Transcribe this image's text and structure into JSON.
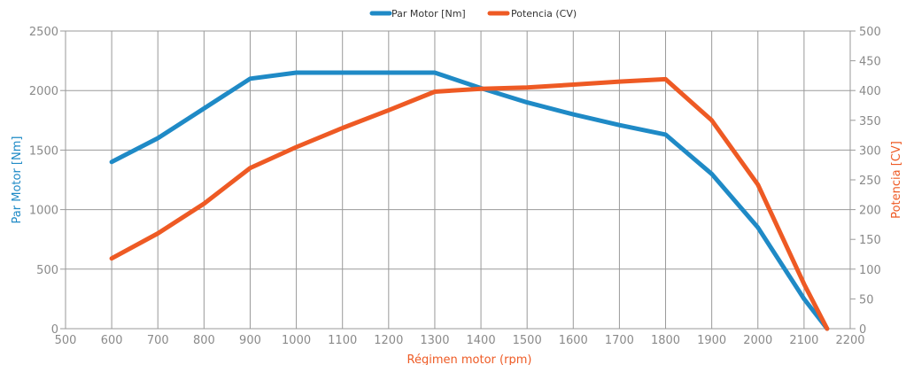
{
  "chart_data": {
    "type": "line",
    "title": "",
    "xlabel": "Régimen motor (rpm)",
    "ylabel_left": "Par Motor  [Nm]",
    "ylabel_right": "Potencia [CV]",
    "xlim": [
      500,
      2200
    ],
    "ylim_left": [
      0,
      2500
    ],
    "ylim_right": [
      0,
      500
    ],
    "x_ticks": [
      500,
      600,
      700,
      800,
      900,
      1000,
      1100,
      1200,
      1300,
      1400,
      1500,
      1600,
      1700,
      1800,
      1900,
      2000,
      2100,
      2200
    ],
    "y_left_ticks": [
      0,
      500,
      1000,
      1500,
      2000,
      2500
    ],
    "y_right_ticks": [
      0,
      50,
      100,
      150,
      200,
      250,
      300,
      350,
      400,
      450,
      500
    ],
    "grid": true,
    "legend_position": "top-center",
    "series": [
      {
        "name": "Par Motor [Nm]",
        "axis": "left",
        "color": "#1f8ac6",
        "x": [
          600,
          700,
          800,
          900,
          1000,
          1100,
          1200,
          1300,
          1400,
          1500,
          1600,
          1700,
          1800,
          1900,
          2000,
          2100,
          2150
        ],
        "y": [
          1400,
          1600,
          1850,
          2100,
          2150,
          2150,
          2150,
          2150,
          2020,
          1900,
          1800,
          1710,
          1630,
          1300,
          850,
          250,
          0
        ]
      },
      {
        "name": "Potencia  (CV)",
        "axis": "right",
        "color": "#ee5a24",
        "x": [
          600,
          700,
          800,
          900,
          1000,
          1100,
          1200,
          1300,
          1400,
          1500,
          1600,
          1700,
          1800,
          1900,
          2000,
          2100,
          2150
        ],
        "y": [
          118,
          160,
          210,
          270,
          305,
          337,
          367,
          398,
          403,
          405,
          410,
          415,
          419,
          350,
          242,
          75,
          0
        ]
      }
    ]
  }
}
